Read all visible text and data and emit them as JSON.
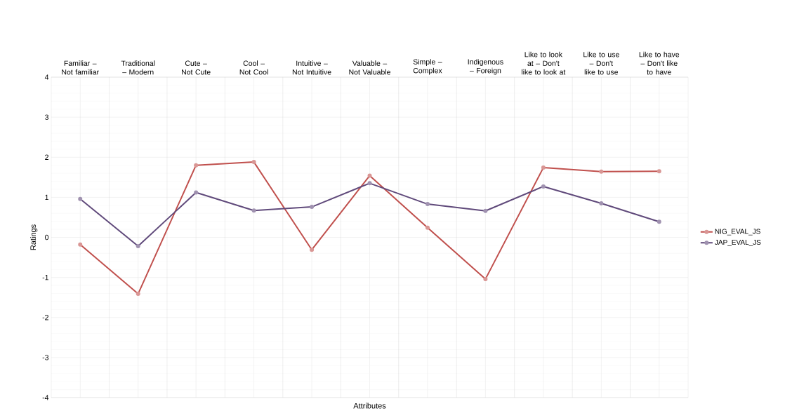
{
  "chart_data": {
    "type": "line",
    "categories": [
      "Familiar – Not familiar",
      "Traditional – Modern",
      "Cute – Not Cute",
      "Cool – Not Cool",
      "Intuitive – Not Intuitive",
      "Valuable – Not Valuable",
      "Simple – Complex",
      "Indigenous – Foreign",
      "Like to look at – Don't like to look at",
      "Like to use – Don't like to use",
      "Like to have – Don't like to have"
    ],
    "series": [
      {
        "name": "NIG_EVAL_JS",
        "color": "#c0504d",
        "values": [
          -0.18,
          -1.41,
          1.8,
          1.88,
          -0.31,
          1.54,
          0.24,
          -1.04,
          1.74,
          1.64,
          1.65
        ]
      },
      {
        "name": "JAP_EVAL_JS",
        "color": "#604a7b",
        "values": [
          0.96,
          -0.22,
          1.12,
          0.67,
          0.76,
          1.35,
          0.83,
          0.66,
          1.27,
          0.85,
          0.39
        ]
      }
    ],
    "xlabel": "Attributes",
    "ylabel": "Ratings",
    "ylim": [
      -4,
      4
    ],
    "yticks": [
      -4,
      -3,
      -2,
      -1,
      0,
      1,
      2,
      3,
      4
    ],
    "grid": true,
    "legend": "right",
    "marker": "circle",
    "line_style": "solid"
  }
}
